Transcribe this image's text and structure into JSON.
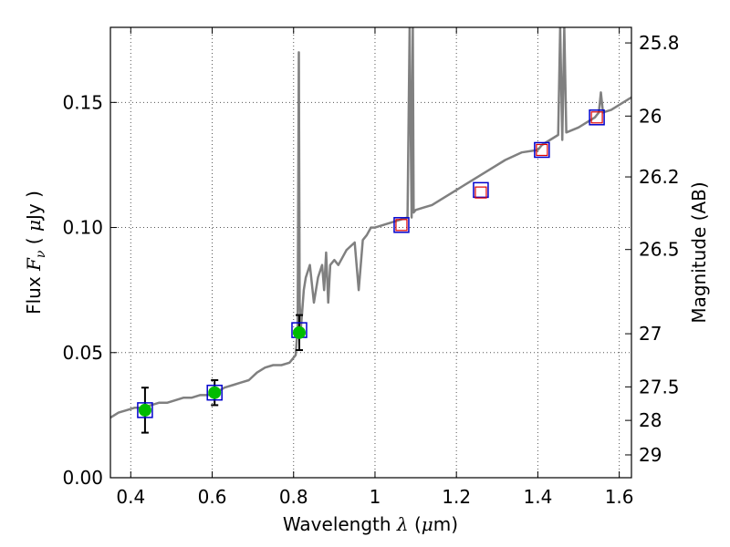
{
  "chart_data": {
    "type": "scatter",
    "title": "",
    "xlabel": "Wavelength  λ (μm)",
    "xlabel_parts": {
      "pre": "Wavelength  ",
      "symbol": "λ",
      "open_paren": " (",
      "unit_greek": "μ",
      "unit_rest": "m)"
    },
    "ylabel": "Flux  F_ν  ( μJy )",
    "ylabel_parts": {
      "pre": "Flux  ",
      "symbol": "F",
      "subscript": "ν",
      "mid": "  ( ",
      "unit_greek": "μ",
      "unit_rest": "Jy )"
    },
    "y2label": "Magnitude (AB)",
    "xlim": [
      0.35,
      1.63
    ],
    "ylim": [
      0.0,
      0.18
    ],
    "x_ticks": [
      {
        "value": 0.4,
        "label": "0.4"
      },
      {
        "value": 0.6,
        "label": "0.6"
      },
      {
        "value": 0.8,
        "label": "0.8"
      },
      {
        "value": 1.0,
        "label": "1"
      },
      {
        "value": 1.2,
        "label": "1.2"
      },
      {
        "value": 1.4,
        "label": "1.4"
      },
      {
        "value": 1.6,
        "label": "1.6"
      }
    ],
    "y_ticks": [
      {
        "value": 0.0,
        "label": "0.00"
      },
      {
        "value": 0.05,
        "label": "0.05"
      },
      {
        "value": 0.1,
        "label": "0.10"
      },
      {
        "value": 0.15,
        "label": "0.15"
      }
    ],
    "y2_ticks": [
      {
        "value": 25.8,
        "label": "25.8"
      },
      {
        "value": 26.0,
        "label": "26"
      },
      {
        "value": 26.2,
        "label": "26.2"
      },
      {
        "value": 26.5,
        "label": "26.5"
      },
      {
        "value": 27.0,
        "label": "27"
      },
      {
        "value": 27.5,
        "label": "27.5"
      },
      {
        "value": 28.0,
        "label": "28"
      },
      {
        "value": 29.0,
        "label": "29"
      }
    ],
    "grid": true,
    "colors": {
      "spectrum": "#808080",
      "observed_fill": "#00bb00",
      "model_box": "#0000cc",
      "predicted_box": "#dd0000",
      "errorbar": "#000000",
      "grid": "#555555"
    },
    "series": [
      {
        "kind": "spectrum",
        "x": [
          0.35,
          0.37,
          0.39,
          0.41,
          0.43,
          0.45,
          0.47,
          0.49,
          0.51,
          0.53,
          0.55,
          0.57,
          0.59,
          0.61,
          0.63,
          0.65,
          0.67,
          0.69,
          0.71,
          0.73,
          0.75,
          0.77,
          0.79,
          0.805,
          0.81,
          0.813,
          0.815,
          0.818,
          0.821,
          0.825,
          0.83,
          0.84,
          0.85,
          0.86,
          0.87,
          0.875,
          0.88,
          0.885,
          0.89,
          0.9,
          0.91,
          0.93,
          0.95,
          0.96,
          0.97,
          0.98,
          0.99,
          1.0,
          1.02,
          1.04,
          1.06,
          1.08,
          1.085,
          1.09,
          1.093,
          1.095,
          1.1,
          1.12,
          1.14,
          1.16,
          1.2,
          1.24,
          1.28,
          1.32,
          1.36,
          1.4,
          1.41,
          1.43,
          1.45,
          1.455,
          1.46,
          1.465,
          1.47,
          1.5,
          1.52,
          1.54,
          1.55,
          1.555,
          1.56,
          1.58,
          1.6,
          1.63
        ],
        "y": [
          0.024,
          0.026,
          0.027,
          0.028,
          0.028,
          0.029,
          0.03,
          0.03,
          0.031,
          0.032,
          0.032,
          0.033,
          0.033,
          0.034,
          0.036,
          0.037,
          0.038,
          0.039,
          0.042,
          0.044,
          0.045,
          0.045,
          0.046,
          0.049,
          0.06,
          0.17,
          0.07,
          0.06,
          0.066,
          0.075,
          0.08,
          0.085,
          0.07,
          0.08,
          0.085,
          0.075,
          0.09,
          0.07,
          0.085,
          0.087,
          0.085,
          0.091,
          0.094,
          0.075,
          0.095,
          0.097,
          0.1,
          0.1,
          0.101,
          0.102,
          0.103,
          0.104,
          0.18,
          0.104,
          0.18,
          0.106,
          0.107,
          0.108,
          0.109,
          0.111,
          0.115,
          0.119,
          0.123,
          0.127,
          0.13,
          0.131,
          0.133,
          0.135,
          0.137,
          0.18,
          0.135,
          0.18,
          0.138,
          0.14,
          0.142,
          0.144,
          0.146,
          0.154,
          0.146,
          0.147,
          0.149,
          0.152
        ]
      },
      {
        "kind": "observed",
        "x": [
          0.435,
          0.606,
          0.814
        ],
        "y": [
          0.027,
          0.034,
          0.058
        ],
        "yerr": [
          0.009,
          0.005,
          0.007
        ]
      },
      {
        "kind": "model",
        "x": [
          0.435,
          0.606,
          0.814,
          1.065,
          1.26,
          1.41,
          1.545
        ],
        "y": [
          0.027,
          0.034,
          0.059,
          0.101,
          0.115,
          0.131,
          0.144
        ]
      },
      {
        "kind": "predicted",
        "x": [
          1.065,
          1.26,
          1.41,
          1.545
        ],
        "y": [
          0.101,
          0.114,
          0.131,
          0.144
        ]
      }
    ]
  }
}
